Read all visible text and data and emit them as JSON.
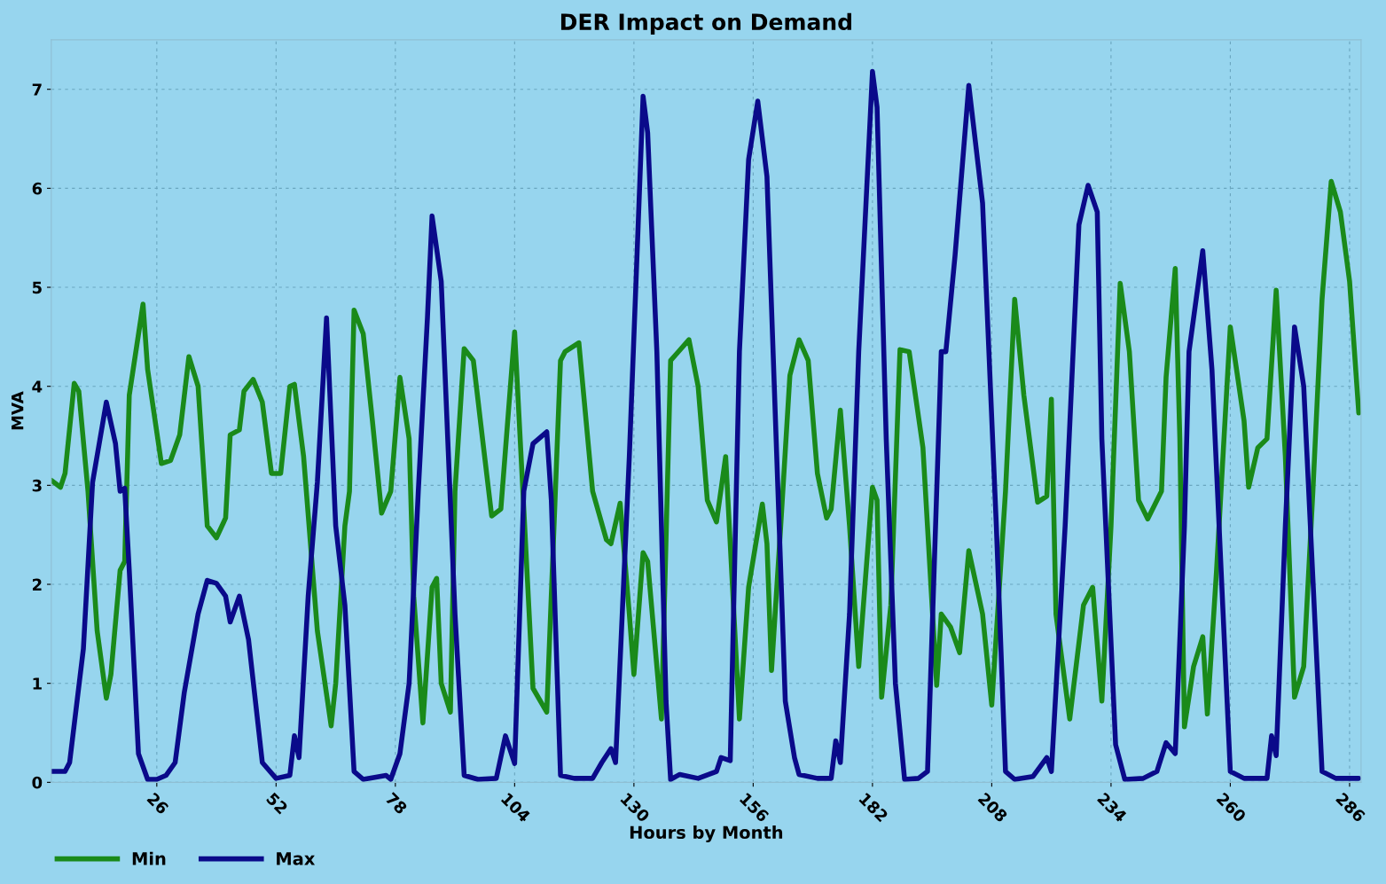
{
  "chart_data": {
    "type": "line",
    "title": "DER Impact on Demand",
    "xlabel": "Hours by Month",
    "ylabel": "MVA",
    "xlim": [
      3,
      288.5
    ],
    "xticks": [
      26,
      52,
      78,
      104,
      130,
      156,
      182,
      208,
      234,
      260,
      286
    ],
    "ylim": [
      0,
      7.5
    ],
    "yticks": [
      0,
      1,
      2,
      3,
      4,
      5,
      6,
      7
    ],
    "grid": true,
    "legend": "bottom left",
    "marker": "none",
    "line_style": "solid",
    "series": [
      {
        "name": "Min",
        "color": "#1a8a1a",
        "x": [
          3,
          5,
          6,
          8,
          9,
          11,
          13,
          15,
          16,
          18,
          19,
          20,
          23,
          24,
          27,
          29,
          31,
          33,
          35,
          37,
          39,
          41,
          42,
          44,
          45,
          47,
          49,
          51,
          53,
          55,
          56,
          58,
          61,
          64,
          65,
          67,
          68,
          69,
          71,
          73,
          75,
          77,
          79,
          81,
          82,
          84,
          86,
          87,
          88,
          90,
          91,
          93,
          95,
          97,
          99,
          101,
          104,
          106,
          108,
          111,
          114,
          115,
          118,
          121,
          124,
          125,
          127,
          129,
          130,
          132,
          133,
          136,
          138,
          142,
          144,
          146,
          148,
          150,
          153,
          155,
          158,
          159,
          160,
          162,
          164,
          166,
          168,
          170,
          172,
          173,
          175,
          177,
          179,
          182,
          183,
          184,
          186,
          188,
          190,
          193,
          196,
          197,
          199,
          201,
          203,
          206,
          208,
          211,
          213,
          215,
          218,
          220,
          221,
          222,
          225,
          228,
          230,
          232,
          234,
          236,
          238,
          240,
          242,
          245,
          246,
          248,
          249,
          250,
          252,
          254,
          255,
          257,
          260,
          263,
          264,
          266,
          268,
          270,
          272,
          274,
          276,
          278,
          280,
          282,
          284,
          286,
          288
        ],
        "values": [
          3.05,
          2.98,
          3.12,
          4.03,
          3.95,
          2.94,
          1.53,
          0.85,
          1.09,
          2.14,
          2.23,
          3.91,
          4.83,
          4.17,
          3.22,
          3.25,
          3.51,
          4.3,
          4.0,
          2.59,
          2.47,
          2.67,
          3.51,
          3.56,
          3.95,
          4.07,
          3.84,
          3.12,
          3.12,
          4.0,
          4.02,
          3.29,
          1.53,
          0.57,
          1.0,
          2.59,
          2.94,
          4.77,
          4.53,
          3.65,
          2.72,
          2.94,
          4.09,
          3.47,
          1.88,
          0.6,
          1.97,
          2.06,
          1.0,
          0.71,
          2.94,
          4.38,
          4.26,
          3.47,
          2.69,
          2.76,
          4.55,
          2.76,
          0.95,
          0.71,
          4.26,
          4.35,
          4.44,
          2.94,
          2.45,
          2.41,
          2.82,
          1.7,
          1.09,
          2.32,
          2.23,
          0.64,
          4.26,
          4.47,
          4.0,
          2.85,
          2.63,
          3.29,
          0.64,
          1.97,
          2.81,
          2.41,
          1.13,
          2.59,
          4.11,
          4.47,
          4.26,
          3.12,
          2.67,
          2.76,
          3.76,
          2.59,
          1.17,
          2.98,
          2.85,
          0.86,
          1.79,
          4.37,
          4.35,
          3.38,
          0.98,
          1.7,
          1.57,
          1.31,
          2.34,
          1.7,
          0.78,
          2.94,
          4.88,
          3.91,
          2.83,
          2.89,
          3.87,
          1.7,
          0.64,
          1.79,
          1.97,
          0.82,
          2.59,
          5.04,
          4.35,
          2.85,
          2.66,
          2.94,
          4.09,
          5.19,
          3.47,
          0.56,
          1.17,
          1.47,
          0.69,
          2.14,
          4.6,
          3.65,
          2.98,
          3.38,
          3.47,
          4.97,
          3.29,
          0.86,
          1.17,
          2.94,
          4.88,
          6.07,
          5.76,
          5.06,
          3.73
        ]
      },
      {
        "name": "Max",
        "color": "#0a0a8a",
        "x": [
          3,
          6,
          7,
          10,
          12,
          15,
          17,
          18,
          19,
          20,
          22,
          24,
          26,
          28,
          30,
          32,
          35,
          37,
          39,
          41,
          42,
          44,
          46,
          49,
          52,
          55,
          56,
          57,
          59,
          61,
          63,
          65,
          67,
          69,
          71,
          76,
          77,
          79,
          81,
          83,
          85,
          86,
          88,
          91,
          93,
          96,
          100,
          102,
          104,
          106,
          108,
          111,
          112,
          114,
          117,
          121,
          123,
          125,
          126,
          129,
          132,
          133,
          135,
          137,
          138,
          140,
          144,
          148,
          149,
          151,
          153,
          155,
          157,
          159,
          161,
          163,
          165,
          166,
          170,
          173,
          174,
          175,
          177,
          179,
          182,
          183,
          185,
          187,
          189,
          192,
          194,
          197,
          198,
          200,
          203,
          206,
          209,
          211,
          213,
          217,
          220,
          221,
          224,
          227,
          229,
          231,
          232,
          235,
          237,
          241,
          244,
          246,
          248,
          250,
          251,
          254,
          256,
          258,
          260,
          263,
          268,
          269,
          270,
          272,
          274,
          276,
          278,
          280,
          283,
          288
        ],
        "values": [
          0.11,
          0.11,
          0.2,
          1.35,
          3.03,
          3.84,
          3.42,
          2.94,
          2.97,
          2.14,
          0.29,
          0.03,
          0.03,
          0.07,
          0.2,
          0.91,
          1.7,
          2.04,
          2.01,
          1.88,
          1.62,
          1.88,
          1.44,
          0.2,
          0.04,
          0.07,
          0.47,
          0.25,
          1.88,
          3.03,
          4.69,
          2.59,
          1.79,
          0.11,
          0.03,
          0.07,
          0.03,
          0.29,
          1.0,
          2.94,
          4.7,
          5.72,
          5.06,
          1.7,
          0.07,
          0.03,
          0.04,
          0.47,
          0.19,
          2.94,
          3.42,
          3.54,
          2.85,
          0.07,
          0.04,
          0.04,
          0.2,
          0.34,
          0.2,
          3.29,
          6.93,
          6.56,
          4.35,
          0.82,
          0.03,
          0.08,
          0.04,
          0.11,
          0.25,
          0.22,
          4.35,
          6.29,
          6.88,
          6.12,
          3.47,
          0.82,
          0.25,
          0.08,
          0.04,
          0.04,
          0.42,
          0.2,
          1.7,
          4.35,
          7.18,
          6.82,
          3.47,
          1.0,
          0.03,
          0.04,
          0.11,
          4.35,
          4.35,
          5.32,
          7.04,
          5.85,
          2.59,
          0.11,
          0.03,
          0.06,
          0.25,
          0.11,
          2.59,
          5.63,
          6.03,
          5.76,
          3.47,
          0.38,
          0.03,
          0.04,
          0.11,
          0.4,
          0.29,
          2.59,
          4.35,
          5.37,
          4.17,
          2.14,
          0.11,
          0.04,
          0.04,
          0.47,
          0.27,
          2.59,
          4.6,
          4.0,
          2.06,
          0.11,
          0.04,
          0.04
        ]
      }
    ]
  }
}
